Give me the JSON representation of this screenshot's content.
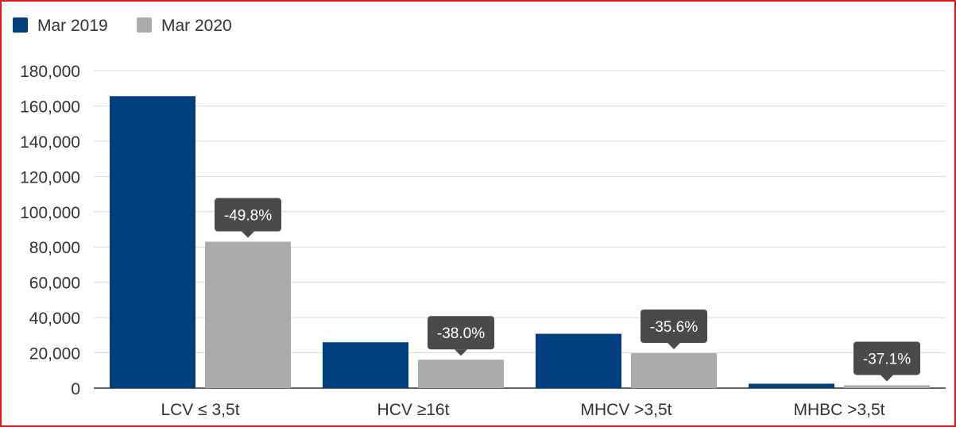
{
  "chart_data": {
    "type": "bar",
    "categories": [
      "LCV ≤ 3,5t",
      "HCV ≥16t",
      "MHCV >3,5t",
      "MHBC >3,5t"
    ],
    "series": [
      {
        "name": "Mar 2019",
        "color": "#003f7f",
        "values": [
          165500,
          26000,
          30800,
          2500
        ]
      },
      {
        "name": "Mar 2020",
        "color": "#ababad",
        "values": [
          83000,
          16100,
          19800,
          1600
        ]
      }
    ],
    "annotations": [
      "-49.8%",
      "-38.0%",
      "-35.6%",
      "-37.1%"
    ],
    "ylim": [
      0,
      180000
    ],
    "yticks": [
      0,
      20000,
      40000,
      60000,
      80000,
      100000,
      120000,
      140000,
      160000,
      180000
    ],
    "ytick_labels": [
      "0",
      "20,000",
      "40,000",
      "60,000",
      "80,000",
      "100,000",
      "120,000",
      "140,000",
      "160,000",
      "180,000"
    ],
    "grid": true,
    "legend_position": "top-left",
    "colors": {
      "gridline": "#dcdcdc",
      "callout": "#4a4a4a",
      "frame": "#e3151a"
    }
  }
}
